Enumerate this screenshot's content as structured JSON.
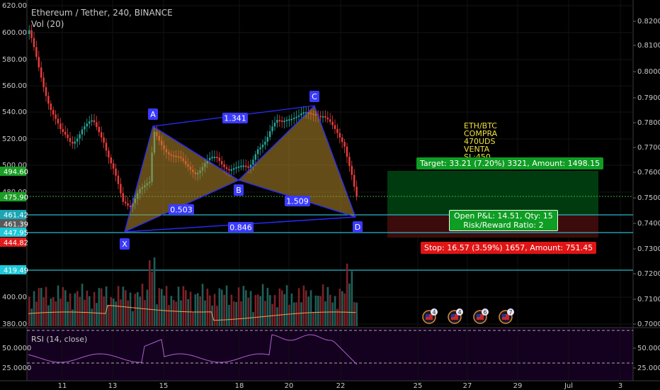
{
  "header": {
    "title": "Ethereum / Tether, 240, BINANCE",
    "indicator": "Vol (20)"
  },
  "rsi": {
    "title": "RSI (14, close)"
  },
  "left_axis": {
    "labels": [
      "620.00",
      "600.00",
      "580.00",
      "560.00",
      "540.00",
      "520.00",
      "500.00",
      "480.00",
      "400.00",
      "380.00",
      "50.0000",
      "25.0000"
    ],
    "tags": [
      {
        "text": "494.60",
        "color": "#1a9e25"
      },
      {
        "text": "475.90",
        "color": "#1a9e25"
      },
      {
        "text": "461.42",
        "color": "#1aa6b5"
      },
      {
        "text": "461.39",
        "color": "#5a5a5a"
      },
      {
        "text": "447.95",
        "color": "#1ec8d8"
      },
      {
        "text": "444.82",
        "color": "#e01a1a"
      },
      {
        "text": "419.49",
        "color": "#1ec8d8"
      }
    ]
  },
  "right_axis": {
    "labels": [
      "0.8200",
      "0.8100",
      "0.8000",
      "0.7900",
      "0.7800",
      "0.7700",
      "0.7600",
      "0.7500",
      "0.7400",
      "0.7300",
      "0.7200",
      "0.7100",
      "0.7000",
      "50.0000",
      "25.0000"
    ]
  },
  "x_axis": {
    "labels": [
      "11",
      "13",
      "15",
      "18",
      "20",
      "22",
      "25",
      "27",
      "29",
      "Jul",
      "3"
    ]
  },
  "pattern": {
    "points": [
      "X",
      "A",
      "B",
      "C",
      "D"
    ],
    "ratios": [
      "1.341",
      "0.503",
      "1.509",
      "0.846"
    ],
    "color": "#3a3aff"
  },
  "note": {
    "lines": [
      "ETH/BTC",
      "COMPRA",
      "470UDS",
      "VENTA",
      "SL:450"
    ]
  },
  "position": {
    "target": "Target: 33.21 (7.20%) 3321, Amount: 1498.15",
    "stop": "Stop: 16.57 (3.59%) 1657, Amount: 751.45",
    "pnl": "Open P&L: 14.51, Qty: 15",
    "rr": "Risk/Reward Ratio: 2"
  },
  "events": [
    {
      "icon": "us-flag-icon",
      "count": "4"
    },
    {
      "icon": "us-flag-icon",
      "count": "4"
    },
    {
      "icon": "us-flag-icon",
      "count": "6"
    },
    {
      "icon": "us-flag-icon",
      "count": "7"
    }
  ]
}
